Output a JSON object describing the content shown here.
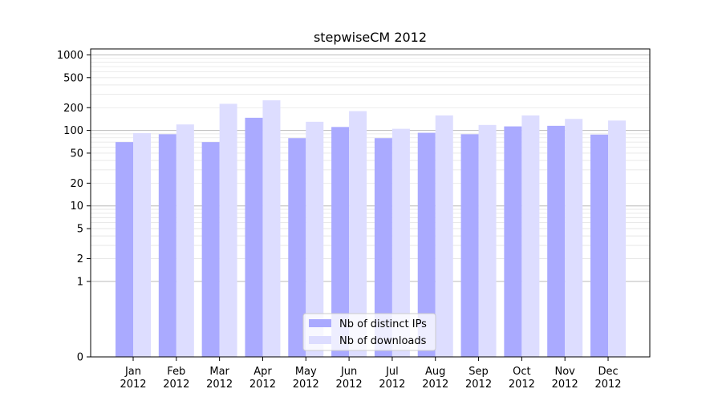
{
  "chart_data": {
    "type": "bar",
    "title": "stepwiseCM 2012",
    "xlabel": "",
    "ylabel": "",
    "yscale": "symlog",
    "ylim": [
      0,
      1200
    ],
    "yticks": [
      0,
      1,
      2,
      5,
      10,
      20,
      50,
      100,
      200,
      500,
      1000
    ],
    "grid": true,
    "legend_position": "bottom-center",
    "categories": [
      [
        "Jan",
        "2012"
      ],
      [
        "Feb",
        "2012"
      ],
      [
        "Mar",
        "2012"
      ],
      [
        "Apr",
        "2012"
      ],
      [
        "May",
        "2012"
      ],
      [
        "Jun",
        "2012"
      ],
      [
        "Jul",
        "2012"
      ],
      [
        "Aug",
        "2012"
      ],
      [
        "Sep",
        "2012"
      ],
      [
        "Oct",
        "2012"
      ],
      [
        "Nov",
        "2012"
      ],
      [
        "Dec",
        "2012"
      ]
    ],
    "series": [
      {
        "name": "Nb of distinct IPs",
        "color": "#aaaaff",
        "values": [
          70,
          89,
          70,
          147,
          79,
          111,
          79,
          93,
          89,
          113,
          115,
          88
        ]
      },
      {
        "name": "Nb of downloads",
        "color": "#ddddff",
        "values": [
          92,
          120,
          225,
          250,
          130,
          180,
          105,
          158,
          118,
          158,
          142,
          135
        ]
      }
    ]
  }
}
